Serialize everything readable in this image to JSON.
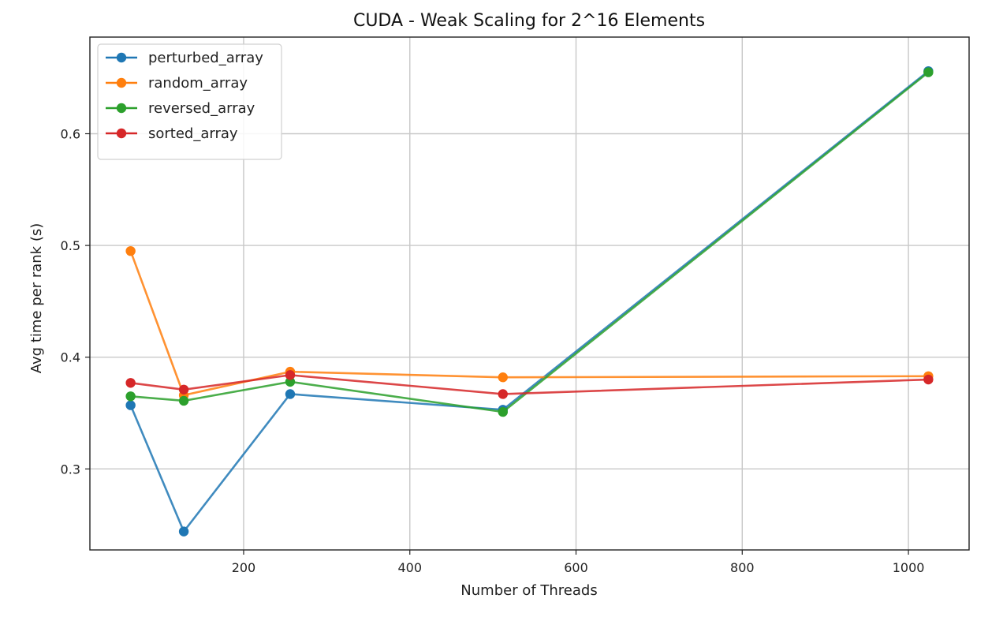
{
  "chart_data": {
    "type": "line",
    "title": "CUDA - Weak Scaling for 2^16 Elements",
    "xlabel": "Number of Threads",
    "ylabel": "Avg time per rank (s)",
    "x": [
      64,
      128,
      256,
      512,
      1024
    ],
    "xlim": [
      15,
      1073
    ],
    "ylim": [
      0.2275,
      0.6865
    ],
    "xticks": [
      200,
      400,
      600,
      800,
      1000
    ],
    "yticks": [
      0.3,
      0.4,
      0.5,
      0.6
    ],
    "ytick_labels": [
      "0.3",
      "0.4",
      "0.5",
      "0.6"
    ],
    "grid": true,
    "legend_position": "upper-left",
    "series": [
      {
        "name": "perturbed_array",
        "color": "#1f77b4",
        "values": [
          0.357,
          0.244,
          0.367,
          0.353,
          0.656
        ]
      },
      {
        "name": "random_array",
        "color": "#ff7f0e",
        "values": [
          0.495,
          0.366,
          0.387,
          0.382,
          0.383
        ]
      },
      {
        "name": "reversed_array",
        "color": "#2ca02c",
        "values": [
          0.365,
          0.361,
          0.378,
          0.351,
          0.655
        ]
      },
      {
        "name": "sorted_array",
        "color": "#d62728",
        "values": [
          0.377,
          0.371,
          0.384,
          0.367,
          0.38
        ]
      }
    ]
  }
}
